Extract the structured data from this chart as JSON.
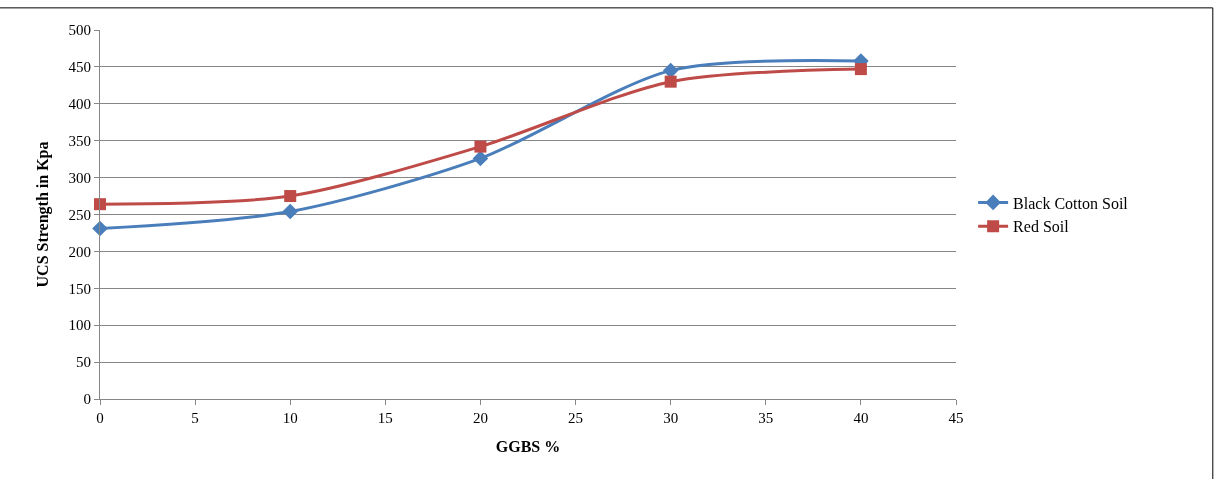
{
  "chart_data": {
    "type": "line",
    "xlabel": "GGBS %",
    "ylabel": "UCS Strength in Kpa",
    "x": [
      0,
      10,
      20,
      30,
      40
    ],
    "series": [
      {
        "name": "Black Cotton Soil",
        "color": "#4a7ebb",
        "values": [
          231,
          254,
          326,
          445,
          458
        ],
        "marker": "diamond"
      },
      {
        "name": "Red Soil",
        "color": "#be4b48",
        "values": [
          264,
          275,
          342,
          430,
          447
        ],
        "marker": "square"
      }
    ],
    "xlim": [
      0,
      45
    ],
    "xticks": [
      0,
      5,
      10,
      15,
      20,
      25,
      30,
      35,
      40,
      45
    ],
    "ylim": [
      0,
      500
    ],
    "yticks": [
      0,
      50,
      100,
      150,
      200,
      250,
      300,
      350,
      400,
      450,
      500
    ],
    "grid": "y",
    "legend": "right",
    "line_style": "solid"
  }
}
